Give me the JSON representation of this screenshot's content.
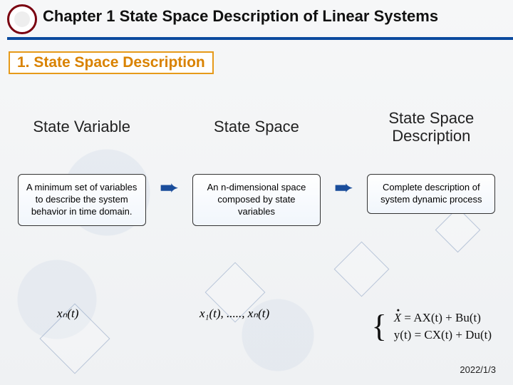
{
  "header": {
    "chapter_title": "Chapter 1 State Space Description of Linear Systems"
  },
  "section": {
    "heading": "1. State Space Description",
    "heading_color": "#d98200",
    "heading_border": "#e69a1a"
  },
  "columns": [
    {
      "head": "State Variable",
      "box": "A minimum set of variables to describe the system behavior in time domain."
    },
    {
      "head": "State Space",
      "box": "An n-dimensional space composed by state variables"
    },
    {
      "head": "State Space Description",
      "box": "Complete description of system dynamic process"
    }
  ],
  "formulas": {
    "xn": "xₙ(t)",
    "xlist": "x₁(t), ....., xₙ(t)",
    "eq1": "= AX(t) + Bu(t)",
    "eq2": "y(t) = CX(t) + Du(t)"
  },
  "footer": {
    "date": "2022/1/3"
  },
  "colors": {
    "rule": "#0b4a9e",
    "arrow": "#1a4d9b",
    "logo_ring": "#7a0010",
    "bg_top": "#f6f7f8",
    "bg_bot": "#eff1f3"
  }
}
